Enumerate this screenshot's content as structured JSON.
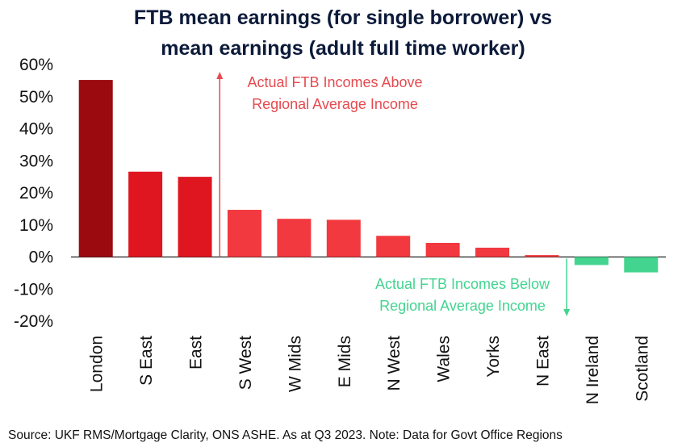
{
  "chart_data": {
    "type": "bar",
    "title_lines": [
      "FTB mean earnings (for single borrower) vs",
      "mean earnings (adult full time worker)"
    ],
    "categories": [
      "London",
      "S East",
      "East",
      "S West",
      "W Mids",
      "E Mids",
      "N West",
      "Wales",
      "Yorks",
      "N East",
      "N Ireland",
      "Scotland"
    ],
    "values": [
      55.2,
      26.6,
      25.0,
      14.7,
      11.9,
      11.6,
      6.6,
      4.4,
      2.9,
      0.6,
      -2.5,
      -4.8
    ],
    "unit": "%",
    "ylim": [
      -20,
      60
    ],
    "yticks": [
      -20,
      -10,
      0,
      10,
      20,
      30,
      40,
      50,
      60
    ],
    "grid": false,
    "legend": "none",
    "annotations": {
      "above_lines": [
        "Actual FTB Incomes Above",
        "Regional Average Income"
      ],
      "below_lines": [
        "Actual FTB Incomes Below",
        "Regional Average Income"
      ]
    },
    "colors": {
      "london": "#9b0a0f",
      "dark_red": "#df1620",
      "red": "#f2393f",
      "green": "#43d490",
      "above_text": "#e64a4f",
      "below_text": "#43d490"
    }
  },
  "footer": {
    "source": "Source: UKF RMS/Mortgage Clarity, ONS ASHE. As at Q3 2023. Note: Data for Govt Office Regions"
  }
}
